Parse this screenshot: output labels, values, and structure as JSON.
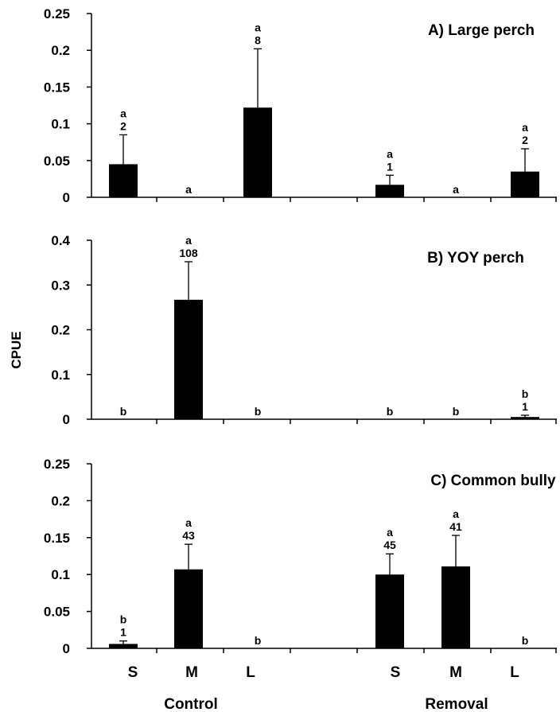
{
  "chart_data": [
    {
      "type": "bar",
      "title": "A) Large perch",
      "categories": [
        "S",
        "M",
        "L",
        "S",
        "M",
        "L"
      ],
      "values": [
        0.045,
        0,
        0.122,
        0.017,
        0,
        0.035
      ],
      "errors": [
        0.04,
        0,
        0.08,
        0.013,
        0,
        0.031
      ],
      "letters": [
        "a",
        "a",
        "a",
        "a",
        "a",
        "a"
      ],
      "counts": [
        "2",
        "",
        "8",
        "1",
        "",
        "2"
      ],
      "ylim": [
        0,
        0.25
      ],
      "yticks": [
        "0",
        "0.05",
        "0.1",
        "0.15",
        "0.2",
        "0.25"
      ]
    },
    {
      "type": "bar",
      "title": "B) YOY perch",
      "categories": [
        "S",
        "M",
        "L",
        "S",
        "M",
        "L"
      ],
      "values": [
        0,
        0.267,
        0,
        0,
        0,
        0.005
      ],
      "errors": [
        0,
        0.085,
        0,
        0,
        0,
        0.004
      ],
      "letters": [
        "b",
        "a",
        "b",
        "b",
        "b",
        "b"
      ],
      "counts": [
        "",
        "108",
        "",
        "",
        "",
        "1"
      ],
      "ylim": [
        0,
        0.4
      ],
      "yticks": [
        "0",
        "0.1",
        "0.2",
        "0.3",
        "0.4"
      ]
    },
    {
      "type": "bar",
      "title": "C) Common bully",
      "categories": [
        "S",
        "M",
        "L",
        "S",
        "M",
        "L"
      ],
      "values": [
        0.006,
        0.107,
        0,
        0.1,
        0.111,
        0
      ],
      "errors": [
        0.004,
        0.034,
        0,
        0.028,
        0.042,
        0
      ],
      "letters": [
        "b",
        "a",
        "b",
        "a",
        "a",
        "b"
      ],
      "counts": [
        "1",
        "43",
        "",
        "45",
        "41",
        ""
      ],
      "ylim": [
        0,
        0.25
      ],
      "yticks": [
        "0",
        "0.05",
        "0.1",
        "0.15",
        "0.2",
        "0.25"
      ]
    }
  ],
  "ylabel": "CPUE",
  "x_categories": [
    "S",
    "M",
    "L",
    "S",
    "M",
    "L"
  ],
  "groups": [
    "Control",
    "Removal"
  ]
}
